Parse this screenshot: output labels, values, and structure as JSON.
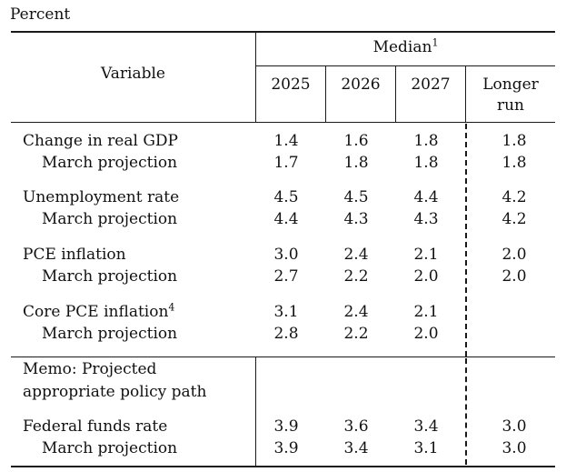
{
  "unit_label": "Percent",
  "header": {
    "variable": "Variable",
    "median": "Median",
    "median_note": "1",
    "years": [
      "2025",
      "2026",
      "2027"
    ],
    "longer_run_line1": "Longer",
    "longer_run_line2": "run"
  },
  "rows": [
    {
      "label": "Change in real GDP",
      "values": [
        "1.4",
        "1.6",
        "1.8",
        "1.8"
      ]
    },
    {
      "label": "March projection",
      "values": [
        "1.7",
        "1.8",
        "1.8",
        "1.8"
      ]
    },
    {
      "label": "Unemployment rate",
      "values": [
        "4.5",
        "4.5",
        "4.4",
        "4.2"
      ]
    },
    {
      "label": "March projection",
      "values": [
        "4.4",
        "4.3",
        "4.3",
        "4.2"
      ]
    },
    {
      "label": "PCE inflation",
      "values": [
        "3.0",
        "2.4",
        "2.1",
        "2.0"
      ]
    },
    {
      "label": "March projection",
      "values": [
        "2.7",
        "2.2",
        "2.0",
        "2.0"
      ]
    },
    {
      "label": "Core PCE inflation",
      "note": "4",
      "values": [
        "3.1",
        "2.4",
        "2.1",
        ""
      ]
    },
    {
      "label": "March projection",
      "values": [
        "2.8",
        "2.2",
        "2.0",
        ""
      ]
    }
  ],
  "memo": {
    "line1": "Memo: Projected",
    "line2": "appropriate policy path"
  },
  "memo_rows": [
    {
      "label": "Federal funds rate",
      "values": [
        "3.9",
        "3.6",
        "3.4",
        "3.0"
      ]
    },
    {
      "label": "March projection",
      "values": [
        "3.9",
        "3.4",
        "3.1",
        "3.0"
      ]
    }
  ]
}
